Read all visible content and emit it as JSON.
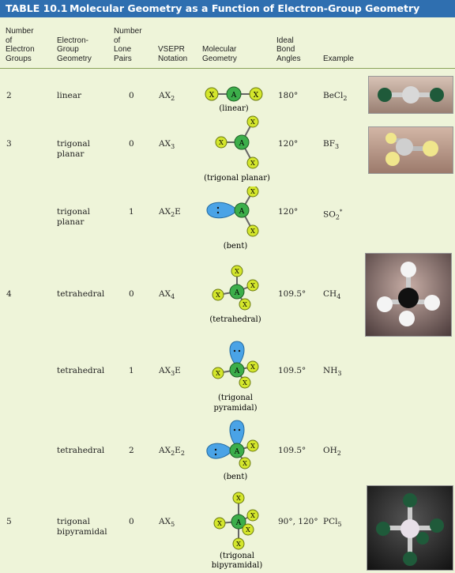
{
  "title": {
    "number": "TABLE 10.1",
    "text": "Molecular Geometry as a Function of Electron-Group Geometry"
  },
  "headers": {
    "groups": "Number\nof\nElectron\nGroups",
    "electron_geometry": "Electron-\nGroup\nGeometry",
    "lone_pairs": "Number\nof\nLone\nPairs",
    "vsepr": "VSEPR\nNotation",
    "molecular_geometry": "Molecular\nGeometry",
    "bond_angles": "Ideal\nBond\nAngles",
    "example": "Example"
  },
  "rows": [
    {
      "groups": "2",
      "electron_geometry": "linear",
      "lone_pairs": "0",
      "vsepr": "AX2",
      "molecular_geometry": "(linear)",
      "bond_angles": "180°",
      "example": "BeCl2"
    },
    {
      "groups": "3",
      "electron_geometry": "trigonal\nplanar",
      "lone_pairs": "0",
      "vsepr": "AX3",
      "molecular_geometry": "(trigonal planar)",
      "bond_angles": "120°",
      "example": "BF3"
    },
    {
      "groups": "",
      "electron_geometry": "trigonal\nplanar",
      "lone_pairs": "1",
      "vsepr": "AX2E",
      "molecular_geometry": "(bent)",
      "bond_angles": "120°",
      "example": "SO2*"
    },
    {
      "groups": "4",
      "electron_geometry": "tetrahedral",
      "lone_pairs": "0",
      "vsepr": "AX4",
      "molecular_geometry": "(tetrahedral)",
      "bond_angles": "109.5°",
      "example": "CH4"
    },
    {
      "groups": "",
      "electron_geometry": "tetrahedral",
      "lone_pairs": "1",
      "vsepr": "AX3E",
      "molecular_geometry": "(trigonal\npyramidal)",
      "bond_angles": "109.5°",
      "example": "NH3"
    },
    {
      "groups": "",
      "electron_geometry": "tetrahedral",
      "lone_pairs": "2",
      "vsepr": "AX2E2",
      "molecular_geometry": "(bent)",
      "bond_angles": "109.5°",
      "example": "OH2"
    },
    {
      "groups": "5",
      "electron_geometry": "trigonal\nbipyramidal",
      "lone_pairs": "0",
      "vsepr": "AX5",
      "molecular_geometry": "(trigonal\nbipyramidal)",
      "bond_angles": "90°, 120°",
      "example": "PCl5"
    }
  ],
  "atom_labels": {
    "central": "A",
    "outer": "X"
  },
  "colors": {
    "title_bar": "#2f6fb0",
    "background": "#eef4d9",
    "central_atom": "#3cae4a",
    "outer_atom": "#d4e62c",
    "lone_pair": "#4aa3e6"
  }
}
